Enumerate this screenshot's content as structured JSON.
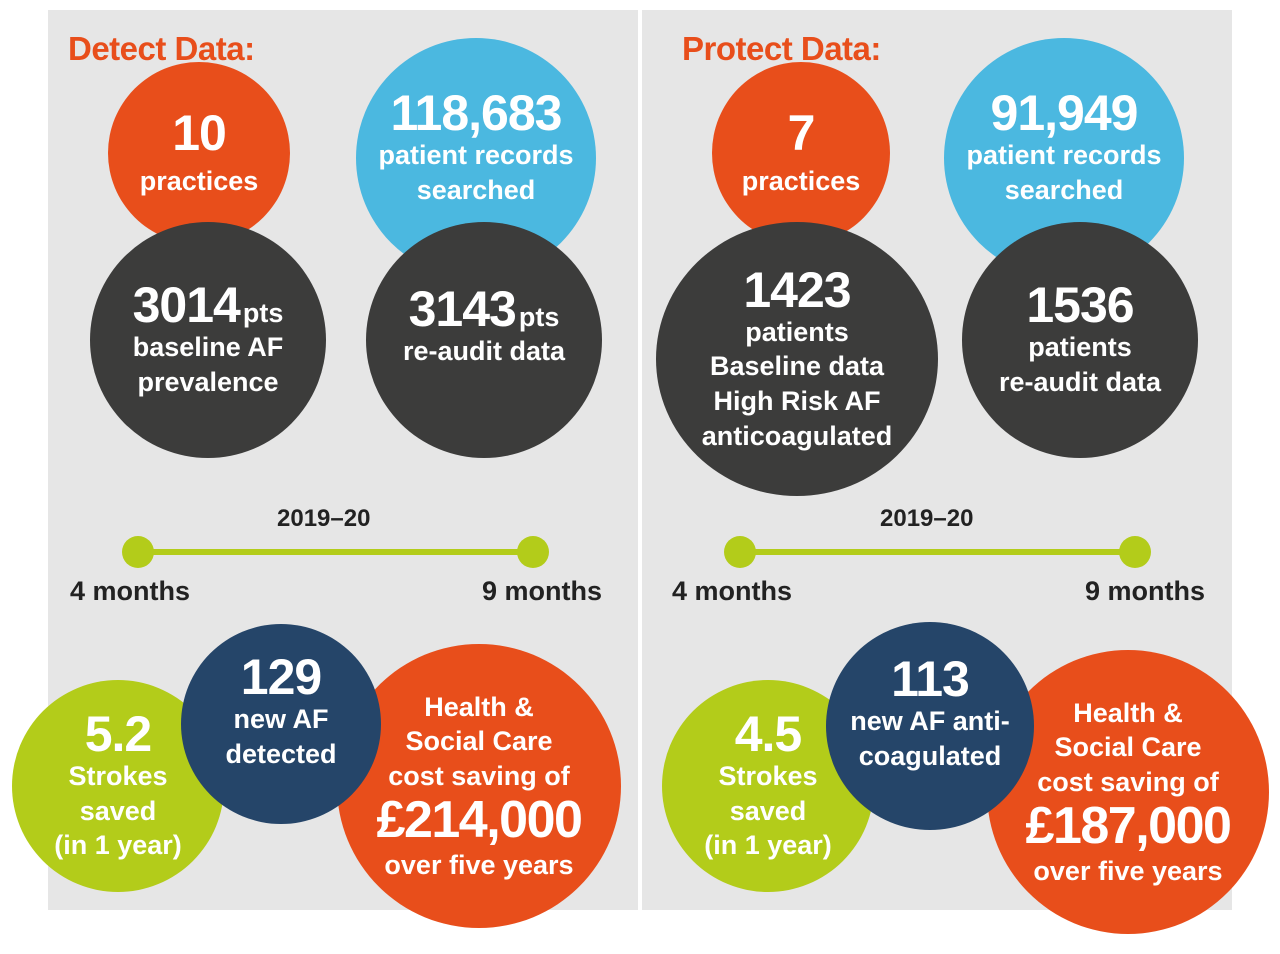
{
  "detect": {
    "heading": "Detect Data:",
    "practices": {
      "value": "10",
      "label": "practices"
    },
    "records": {
      "value": "118,683",
      "line1": "patient records",
      "line2": "searched"
    },
    "baseline": {
      "value": "3014",
      "unit": "pts",
      "line1": "baseline AF",
      "line2": "prevalence"
    },
    "reaudit": {
      "value": "3143",
      "unit": "pts",
      "line1": "re-audit data"
    },
    "timeline": {
      "year": "2019–20",
      "start": "4 months",
      "end": "9 months"
    },
    "strokes": {
      "value": "5.2",
      "line1": "Strokes",
      "line2": "saved",
      "line3": "(in 1 year)"
    },
    "new_af": {
      "value": "129",
      "line1": "new AF",
      "line2": "detected"
    },
    "saving": {
      "line1": "Health &",
      "line2": "Social Care",
      "line3": "cost saving of",
      "value": "£214,000",
      "line4": "over five years"
    }
  },
  "protect": {
    "heading": "Protect Data:",
    "practices": {
      "value": "7",
      "label": "practices"
    },
    "records": {
      "value": "91,949",
      "line1": "patient records",
      "line2": "searched"
    },
    "baseline": {
      "value": "1423",
      "line1": "patients",
      "line2": "Baseline data",
      "line3": "High Risk AF",
      "line4": "anticoagulated"
    },
    "reaudit": {
      "value": "1536",
      "line1": "patients",
      "line2": "re-audit data"
    },
    "timeline": {
      "year": "2019–20",
      "start": "4 months",
      "end": "9 months"
    },
    "strokes": {
      "value": "4.5",
      "line1": "Strokes",
      "line2": "saved",
      "line3": "(in 1 year)"
    },
    "new_af": {
      "value": "113",
      "line1": "new AF anti-",
      "line2": "coagulated"
    },
    "saving": {
      "line1": "Health &",
      "line2": "Social Care",
      "line3": "cost saving of",
      "value": "£187,000",
      "line4": "over five years"
    }
  },
  "colors": {
    "orange": "#e84e1b",
    "blue": "#4bb8e0",
    "dark": "#3c3c3b",
    "navy": "#254569",
    "lime": "#b3cc1a",
    "panel": "#e6e6e6"
  }
}
